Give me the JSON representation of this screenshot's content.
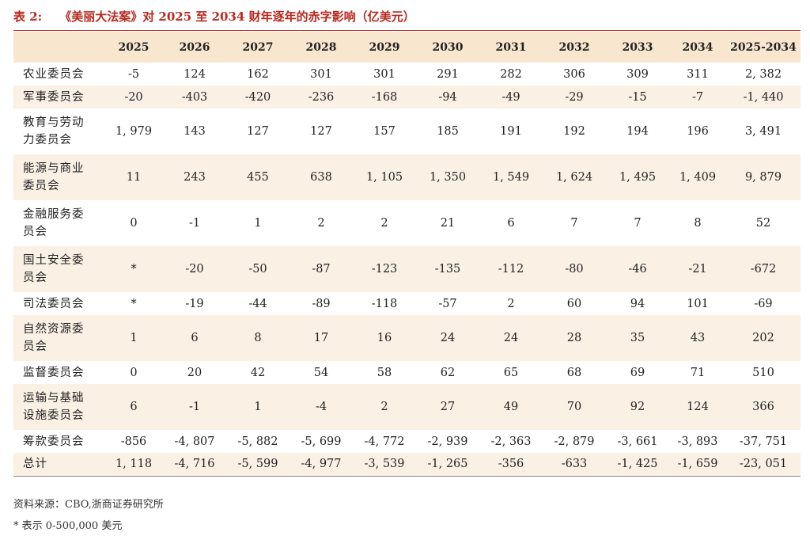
{
  "caption": {
    "number": "表 2:",
    "title": "《美丽大法案》对 2025 至 2034 财年逐年的赤字影响（亿美元）"
  },
  "table": {
    "columns": [
      "",
      "2025",
      "2026",
      "2027",
      "2028",
      "2029",
      "2030",
      "2031",
      "2032",
      "2033",
      "2034",
      "2025-2034"
    ],
    "rows": [
      {
        "label": [
          "农业委员会"
        ],
        "values": [
          "-5",
          "124",
          "162",
          "301",
          "301",
          "291",
          "282",
          "306",
          "309",
          "311",
          "2, 382"
        ]
      },
      {
        "label": [
          "军事委员会"
        ],
        "values": [
          "-20",
          "-403",
          "-420",
          "-236",
          "-168",
          "-94",
          "-49",
          "-29",
          "-15",
          "-7",
          "-1, 440"
        ]
      },
      {
        "label": [
          "教育与劳动",
          "力委员会"
        ],
        "values": [
          "1, 979",
          "143",
          "127",
          "127",
          "157",
          "185",
          "191",
          "192",
          "194",
          "196",
          "3, 491"
        ]
      },
      {
        "label": [
          "能源与商业",
          "委员会"
        ],
        "values": [
          "11",
          "243",
          "455",
          "638",
          "1, 105",
          "1, 350",
          "1, 549",
          "1, 624",
          "1, 495",
          "1, 409",
          "9, 879"
        ]
      },
      {
        "label": [
          "金融服务委",
          "员会"
        ],
        "values": [
          "0",
          "-1",
          "1",
          "2",
          "2",
          "21",
          "6",
          "7",
          "7",
          "8",
          "52"
        ]
      },
      {
        "label": [
          "国土安全委",
          "员会"
        ],
        "values": [
          "*",
          "-20",
          "-50",
          "-87",
          "-123",
          "-135",
          "-112",
          "-80",
          "-46",
          "-21",
          "-672"
        ]
      },
      {
        "label": [
          "司法委员会"
        ],
        "values": [
          "*",
          "-19",
          "-44",
          "-89",
          "-118",
          "-57",
          "2",
          "60",
          "94",
          "101",
          "-69"
        ]
      },
      {
        "label": [
          "自然资源委",
          "员会"
        ],
        "values": [
          "1",
          "6",
          "8",
          "17",
          "16",
          "24",
          "24",
          "28",
          "35",
          "43",
          "202"
        ]
      },
      {
        "label": [
          "监督委员会"
        ],
        "values": [
          "0",
          "20",
          "42",
          "54",
          "58",
          "62",
          "65",
          "68",
          "69",
          "71",
          "510"
        ]
      },
      {
        "label": [
          "运输与基础",
          "设施委员会"
        ],
        "values": [
          "6",
          "-1",
          "1",
          "-4",
          "2",
          "27",
          "49",
          "70",
          "92",
          "124",
          "366"
        ]
      },
      {
        "label": [
          "筹款委员会"
        ],
        "values": [
          "-856",
          "-4, 807",
          "-5, 882",
          "-5, 699",
          "-4, 772",
          "-2, 939",
          "-2, 363",
          "-2, 879",
          "-3, 661",
          "-3, 893",
          "-37, 751"
        ]
      },
      {
        "label": [
          "总计"
        ],
        "values": [
          "1, 118",
          "-4, 716",
          "-5, 599",
          "-4, 977",
          "-3, 539",
          "-1, 265",
          "-356",
          "-633",
          "-1, 425",
          "-1, 659",
          "-23, 051"
        ]
      }
    ]
  },
  "source": "资料来源：CBO,浙商证券研究所",
  "footnote": "* 表示 0-500,000 美元"
}
